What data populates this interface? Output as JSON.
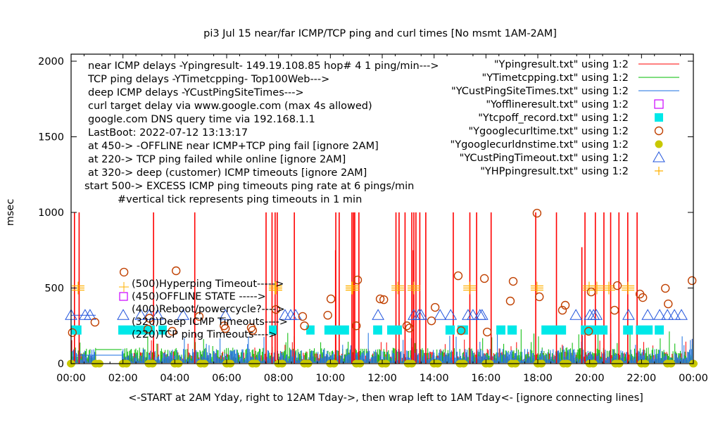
{
  "chart_data": {
    "type": "line",
    "title": "pi3 Jul 15  near/far ICMP/TCP ping and curl times [No msmt 1AM-2AM]",
    "xlabel": "<-START at 2AM Yday, right to 12AM Tday->, then wrap left to 1AM Tday<- [ignore connecting lines]",
    "ylabel": "msec",
    "xlim_hours": [
      0,
      24
    ],
    "ylim": [
      0,
      2000
    ],
    "x_ticks": [
      "00:00",
      "02:00",
      "04:00",
      "06:00",
      "08:00",
      "10:00",
      "12:00",
      "14:00",
      "16:00",
      "18:00",
      "20:00",
      "22:00",
      "00:00"
    ],
    "y_ticks": [
      "0",
      "500",
      "1000",
      "1500",
      "2000"
    ],
    "grid": false,
    "legend_placement": "top-right",
    "notes": [
      "near ICMP delays -Ypingresult- 149.19.108.85 hop# 4 1 ping/min--->",
      "TCP ping delays -YTimetcpping- Top100Web--->",
      "deep ICMP delays -YCustPingSiteTimes--->",
      "curl target delay via www.google.com (max 4s allowed)",
      "google.com DNS query time via 192.168.1.1",
      "LastBoot: 2022-07-12 13:13:17",
      "at 450-> -OFFLINE near ICMP+TCP ping fail [ignore 2AM]",
      "at 220-> TCP ping failed while online [ignore 2AM]",
      "at 320-> deep (customer) ICMP timeouts [ignore 2AM]",
      "start 500-> EXCESS ICMP ping timeouts ping rate at 6 pings/min",
      "#vertical tick represents ping timeouts in 1 min"
    ],
    "marker_labels": [
      "(500)Hyperping Timeout----->",
      "(450)OFFLINE STATE ----->",
      "(400)Reboot/powercycle?---->",
      "(320)Deep ICMP Timeouts---->",
      "(220)TCP ping Timeouts---->"
    ],
    "series": [
      {
        "name": "\"Ypingresult.txt\" using 1:2",
        "style": "line",
        "color": "#ff0000",
        "spikes": {
          "x": [
            0.13,
            0.31,
            3.18,
            4.77,
            7.52,
            7.75,
            7.87,
            7.95,
            8.61,
            10.21,
            10.34,
            10.83,
            10.89,
            10.94,
            11.1,
            12.53,
            12.65,
            12.88,
            13.14,
            13.22,
            13.3,
            13.45,
            13.68,
            14.74,
            15.38,
            15.64,
            16.2,
            17.92,
            18.72,
            19.82,
            20.22,
            20.55,
            20.81,
            21.13,
            21.47,
            21.83,
            10.2,
            13.2,
            19.7
          ],
          "y": [
            1000,
            1000,
            1000,
            1000,
            1000,
            1000,
            1000,
            1000,
            1000,
            1000,
            1000,
            1000,
            1000,
            1000,
            1000,
            1000,
            1000,
            1000,
            1000,
            1000,
            1000,
            1000,
            1000,
            1000,
            1000,
            1000,
            1000,
            1000,
            1000,
            1000,
            1000,
            1000,
            1000,
            1000,
            1000,
            1000,
            750,
            750,
            770
          ]
        }
      },
      {
        "name": "\"YTimetcpping.txt\" using 1:2",
        "style": "line",
        "color": "#00bb00"
      },
      {
        "name": "\"YCustPingSiteTimes.txt\" using 1:2",
        "style": "line",
        "color": "#1a6fe0"
      },
      {
        "name": "\"Yofflineresult.txt\" using 1:2",
        "style": "open-square",
        "color": "#cc00ff",
        "x": [],
        "y": []
      },
      {
        "name": "\"Ytcpoff_record.txt\" using 1:2",
        "style": "filled-square",
        "color": "#00e8e8",
        "ranges": [
          [
            0.0,
            0.4
          ],
          [
            1.82,
            3.23
          ],
          [
            3.37,
            3.69
          ],
          [
            7.63,
            7.93
          ],
          [
            9.07,
            9.39
          ],
          [
            9.77,
            10.72
          ],
          [
            11.65,
            12.0
          ],
          [
            12.19,
            12.76
          ],
          [
            14.44,
            14.8
          ],
          [
            14.9,
            15.31
          ],
          [
            16.4,
            16.75
          ],
          [
            16.83,
            17.19
          ],
          [
            18.14,
            19.09
          ],
          [
            19.66,
            20.69
          ],
          [
            21.29,
            21.67
          ],
          [
            21.78,
            22.43
          ],
          [
            22.51,
            22.86
          ]
        ],
        "value": 220
      },
      {
        "name": "\"Ygooglecurltime.txt\" using 1:2",
        "style": "open-circle",
        "color": "#c04000",
        "x": [
          0.05,
          0.92,
          2.04,
          2.96,
          3.02,
          3.9,
          4.05,
          4.94,
          5.9,
          5.95,
          6.95,
          7.0,
          7.9,
          8.93,
          9.0,
          9.9,
          10.02,
          11.0,
          11.05,
          11.92,
          12.06,
          12.95,
          13.05,
          13.9,
          14.04,
          14.93,
          15.04,
          15.94,
          16.05,
          16.94,
          17.05,
          17.97,
          18.06,
          18.95,
          19.06,
          19.96,
          20.06,
          20.96,
          21.07,
          21.94,
          22.05,
          22.92,
          23.03,
          23.95
        ],
        "y": [
          205,
          274,
          605,
          228,
          300,
          214,
          614,
          312,
          250,
          232,
          237,
          220,
          358,
          312,
          250,
          320,
          428,
          250,
          553,
          428,
          423,
          250,
          235,
          283,
          372,
          581,
          218,
          563,
          209,
          414,
          544,
          995,
          442,
          353,
          386,
          214,
          474,
          353,
          516,
          460,
          437,
          498,
          395,
          549
        ]
      },
      {
        "name": "\"Ygooglecurldnstime.txt\" using 1:2",
        "style": "filled-circle",
        "color": "#c8c800",
        "x": [
          0,
          0.95,
          2,
          3,
          4,
          5,
          6,
          7,
          8,
          9,
          10,
          11,
          12,
          13,
          14,
          15,
          16,
          17,
          18,
          19,
          20,
          21,
          22,
          23,
          24
        ],
        "y": [
          0,
          0,
          0,
          0,
          0,
          0,
          0,
          0,
          0,
          0,
          0,
          0,
          0,
          0,
          0,
          0,
          0,
          0,
          0,
          0,
          0,
          0,
          0,
          0,
          0
        ]
      },
      {
        "name": "\"YCustPingTimeout.txt\" using 1:2",
        "style": "open-triangle",
        "color": "#2255dd",
        "x": [
          0,
          0.54,
          0.73,
          2.01,
          2.69,
          3.01,
          3.34,
          4.32,
          5.95,
          8.25,
          8.47,
          8.66,
          11.84,
          13.22,
          13.41,
          13.5,
          14.23,
          14.64,
          15.31,
          15.5,
          15.77,
          15.85,
          19.47,
          20.01,
          20.15,
          20.26,
          21.5,
          22.24,
          22.7,
          23.0,
          23.27,
          23.54
        ],
        "value": 320
      },
      {
        "name": "\"YHPpingresult.txt\" using 1:2",
        "style": "plus",
        "color": "#ffb000",
        "x": [
          0.27,
          7.87,
          7.9,
          10.83,
          10.86,
          12.6,
          13.22,
          15.37,
          17.97,
          19.98,
          20.28,
          20.74,
          21.48
        ],
        "value": 500
      }
    ]
  }
}
